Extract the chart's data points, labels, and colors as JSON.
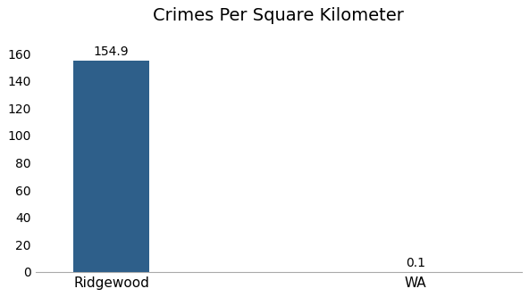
{
  "title": "Crimes Per Square Kilometer",
  "categories": [
    "Ridgewood",
    "WA"
  ],
  "values": [
    154.9,
    0.1
  ],
  "bar_colors": [
    "#2e5f8a",
    "#2e5f8a"
  ],
  "bar_width": 0.5,
  "ylim": [
    0,
    175
  ],
  "yticks": [
    0,
    20,
    40,
    60,
    80,
    100,
    120,
    140,
    160
  ],
  "title_fontsize": 14,
  "label_fontsize": 11,
  "tick_fontsize": 10,
  "value_fontsize": 10,
  "background_color": "#ffffff",
  "bar_positions": [
    1,
    3
  ]
}
